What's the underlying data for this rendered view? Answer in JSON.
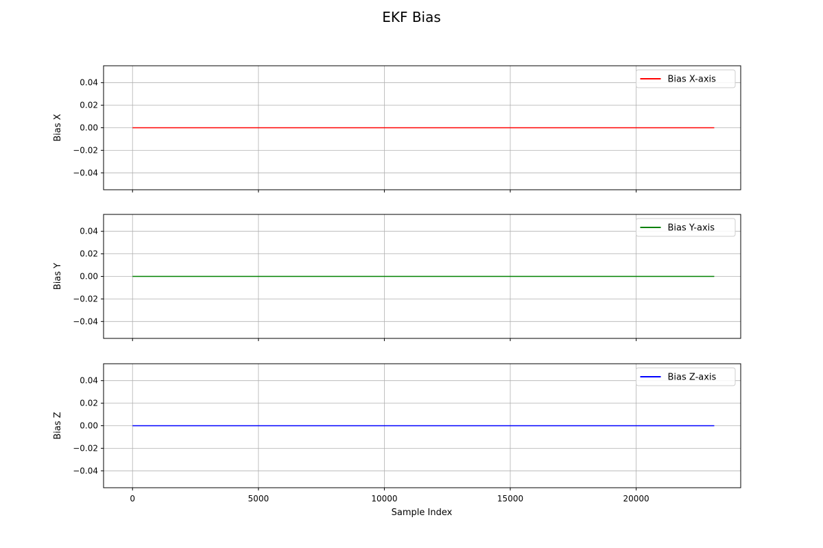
{
  "figure": {
    "title": "EKF Bias",
    "xlabel": "Sample Index"
  },
  "colors": {
    "grid": "#b0b0b0",
    "axes": "#000000",
    "legend_border": "#cccccc"
  },
  "chart_data": [
    {
      "type": "line",
      "ylabel": "Bias X",
      "xlim": [
        -1150,
        24150
      ],
      "ylim": [
        -0.055,
        0.055
      ],
      "x_ticks": [
        0,
        5000,
        10000,
        15000,
        20000
      ],
      "y_ticks": [
        0.04,
        0.02,
        0.0,
        -0.02,
        -0.04
      ],
      "y_tick_labels": [
        "0.04",
        "0.02",
        "0.00",
        "−0.02",
        "−0.04"
      ],
      "grid": true,
      "legend_position": "upper right",
      "series": [
        {
          "name": "Bias X-axis",
          "color": "#ff0000",
          "x": [
            0,
            23100
          ],
          "y": [
            0.0,
            0.0
          ]
        }
      ]
    },
    {
      "type": "line",
      "ylabel": "Bias Y",
      "xlim": [
        -1150,
        24150
      ],
      "ylim": [
        -0.055,
        0.055
      ],
      "x_ticks": [
        0,
        5000,
        10000,
        15000,
        20000
      ],
      "y_ticks": [
        0.04,
        0.02,
        0.0,
        -0.02,
        -0.04
      ],
      "y_tick_labels": [
        "0.04",
        "0.02",
        "0.00",
        "−0.02",
        "−0.04"
      ],
      "grid": true,
      "legend_position": "upper right",
      "series": [
        {
          "name": "Bias Y-axis",
          "color": "#008000",
          "x": [
            0,
            23100
          ],
          "y": [
            0.0,
            0.0
          ]
        }
      ]
    },
    {
      "type": "line",
      "ylabel": "Bias Z",
      "xlim": [
        -1150,
        24150
      ],
      "ylim": [
        -0.055,
        0.055
      ],
      "x_ticks": [
        0,
        5000,
        10000,
        15000,
        20000
      ],
      "x_tick_labels": [
        "0",
        "5000",
        "10000",
        "15000",
        "20000"
      ],
      "y_ticks": [
        0.04,
        0.02,
        0.0,
        -0.02,
        -0.04
      ],
      "y_tick_labels": [
        "0.04",
        "0.02",
        "0.00",
        "−0.02",
        "−0.04"
      ],
      "grid": true,
      "legend_position": "upper right",
      "series": [
        {
          "name": "Bias Z-axis",
          "color": "#0000ff",
          "x": [
            0,
            23100
          ],
          "y": [
            0.0,
            0.0
          ]
        }
      ]
    }
  ]
}
